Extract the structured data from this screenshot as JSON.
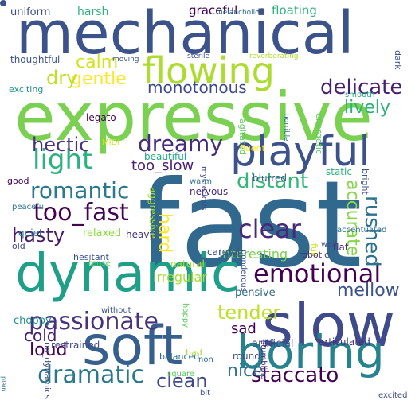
{
  "words": [
    {
      "text": "fast",
      "color": "#31688e",
      "rotated": false
    },
    {
      "text": "expressive",
      "color": "#7ad151",
      "rotated": false
    },
    {
      "text": "mechanical",
      "color": "#3b528b",
      "rotated": false
    },
    {
      "text": "slow",
      "color": "#3e4a89",
      "rotated": false
    },
    {
      "text": "soft",
      "color": "#355f8d",
      "rotated": false
    },
    {
      "text": "dynamic",
      "color": "#1f9f88",
      "rotated": false
    },
    {
      "text": "boring",
      "color": "#26828e",
      "rotated": false
    },
    {
      "text": "playful",
      "color": "#3b528b",
      "rotated": false
    },
    {
      "text": "flowing",
      "color": "#addc30",
      "rotated": false
    },
    {
      "text": "emotional",
      "color": "#440154",
      "rotated": false
    },
    {
      "text": "passionate",
      "color": "#46327e",
      "rotated": false
    },
    {
      "text": "dramatic",
      "color": "#2a788e",
      "rotated": false
    },
    {
      "text": "light",
      "color": "#2db27d",
      "rotated": false
    },
    {
      "text": "too_fast",
      "color": "#440154",
      "rotated": false
    },
    {
      "text": "romantic",
      "color": "#2a788e",
      "rotated": false
    },
    {
      "text": "dreamy",
      "color": "#472d7b",
      "rotated": false
    },
    {
      "text": "clear",
      "color": "#482878",
      "rotated": false
    },
    {
      "text": "delicate",
      "color": "#481f70",
      "rotated": false
    },
    {
      "text": "distant",
      "color": "#35b779",
      "rotated": false
    },
    {
      "text": "staccato",
      "color": "#440154",
      "rotated": false
    },
    {
      "text": "tender",
      "color": "#bddf26",
      "rotated": false
    },
    {
      "text": "rushed",
      "color": "#2c728e",
      "rotated": true
    },
    {
      "text": "clean",
      "color": "#3e4a89",
      "rotated": false
    },
    {
      "text": "hectic",
      "color": "#46327e",
      "rotated": false
    },
    {
      "text": "mellow",
      "color": "#3b528b",
      "rotated": false
    },
    {
      "text": "loud",
      "color": "#440154",
      "rotated": false
    },
    {
      "text": "hasty",
      "color": "#481a6c",
      "rotated": false
    },
    {
      "text": "lively",
      "color": "#2db27d",
      "rotated": false
    },
    {
      "text": "gentle",
      "color": "#fde725",
      "rotated": false
    },
    {
      "text": "calm",
      "color": "#d2e21b",
      "rotated": false
    },
    {
      "text": "dry",
      "color": "#c2df23",
      "rotated": false
    },
    {
      "text": "hard",
      "color": "#fde725",
      "rotated": true
    },
    {
      "text": "accurate",
      "color": "#86d549",
      "rotated": true
    },
    {
      "text": "cold",
      "color": "#481f70",
      "rotated": false
    },
    {
      "text": "nice",
      "color": "#2c728e",
      "rotated": false
    },
    {
      "text": "monotonous",
      "color": "#3e4a89",
      "rotated": false
    },
    {
      "text": "too_slow",
      "color": "#482173",
      "rotated": false
    },
    {
      "text": "sad",
      "color": "#440154",
      "rotated": false
    },
    {
      "text": "interesting",
      "color": "#7ad151",
      "rotated": false
    },
    {
      "text": "irregular",
      "color": "#a5db36",
      "rotated": false
    },
    {
      "text": "graceful",
      "color": "#440154",
      "rotated": false
    },
    {
      "text": "floating",
      "color": "#2db27d",
      "rotated": false
    },
    {
      "text": "harsh",
      "color": "#2db27d",
      "rotated": false
    },
    {
      "text": "uniform",
      "color": "#3e4a89",
      "rotated": false
    },
    {
      "text": "pensive",
      "color": "#31688e",
      "rotated": false
    },
    {
      "text": "beautiful",
      "color": "#22a884",
      "rotated": false
    },
    {
      "text": "artificial",
      "color": "#3b528b",
      "rotated": false
    },
    {
      "text": "articulated",
      "color": "#46327e",
      "rotated": false
    },
    {
      "text": "thoughtful",
      "color": "#3b528b",
      "rotated": false
    },
    {
      "text": "nervous",
      "color": "#472d7b",
      "rotated": false
    },
    {
      "text": "relaxed",
      "color": "#8fd744",
      "rotated": false
    },
    {
      "text": "heavy",
      "color": "#46327e",
      "rotated": false
    },
    {
      "text": "restrained",
      "color": "#3e4a89",
      "rotated": false
    },
    {
      "text": "choppy",
      "color": "#21918c",
      "rotated": false
    },
    {
      "text": "quiet",
      "color": "#2c728e",
      "rotated": false
    },
    {
      "text": "agitated",
      "color": "#5ec962",
      "rotated": true
    },
    {
      "text": "energetic",
      "color": "#5ec962",
      "rotated": true
    },
    {
      "text": "bright",
      "color": "#3b528b",
      "rotated": true
    },
    {
      "text": "dark",
      "color": "#3b528b",
      "rotated": true
    },
    {
      "text": "happy",
      "color": "#5ec962",
      "rotated": true
    },
    {
      "text": "stumbling",
      "color": "#482878",
      "rotated": true
    },
    {
      "text": "natural",
      "color": "#addc30",
      "rotated": false
    },
    {
      "text": "careful",
      "color": "#3b528b",
      "rotated": false
    },
    {
      "text": "full",
      "color": "#d2e21b",
      "rotated": true
    },
    {
      "text": "flat",
      "color": "#472d7b",
      "rotated": false
    },
    {
      "text": "mysterious",
      "color": "#3e4a89",
      "rotated": true
    },
    {
      "text": "robotic",
      "color": "#472d7b",
      "rotated": false
    },
    {
      "text": "ponderous",
      "color": "#3b528b",
      "rotated": true
    },
    {
      "text": "aggressive",
      "color": "#a5db36",
      "rotated": true
    },
    {
      "text": "blurred",
      "color": "#3b528b",
      "rotated": false
    },
    {
      "text": "static",
      "color": "#2db27d",
      "rotated": false
    },
    {
      "text": "legato",
      "color": "#440154",
      "rotated": false
    },
    {
      "text": "melancholic",
      "color": "#2c728e",
      "rotated": false
    },
    {
      "text": "moving",
      "color": "#3b528b",
      "rotated": false
    },
    {
      "text": "sterile",
      "color": "#3e4a89",
      "rotated": false
    },
    {
      "text": "reverberating",
      "color": "#addc30",
      "rotated": false
    },
    {
      "text": "exciting",
      "color": "#21918c",
      "rotated": false
    },
    {
      "text": "smooth",
      "color": "#22a884",
      "rotated": false
    },
    {
      "text": "fluent",
      "color": "#fde725",
      "rotated": false
    },
    {
      "text": "horrible",
      "color": "#2c728e",
      "rotated": true
    },
    {
      "text": "MIDI",
      "color": "#d2e21b",
      "rotated": false
    },
    {
      "text": "good",
      "color": "#440154",
      "rotated": false
    },
    {
      "text": "peaceful",
      "color": "#2c728e",
      "rotated": false
    },
    {
      "text": "warm",
      "color": "#2c728e",
      "rotated": false
    },
    {
      "text": "old",
      "color": "#3e4a89",
      "rotated": false
    },
    {
      "text": "hesitant",
      "color": "#3b528b",
      "rotated": false
    },
    {
      "text": "tense",
      "color": "#5ec962",
      "rotated": false
    },
    {
      "text": "accentuated",
      "color": "#2c728e",
      "rotated": false
    },
    {
      "text": "well",
      "color": "#3b528b",
      "rotated": false
    },
    {
      "text": "without",
      "color": "#3b528b",
      "rotated": false
    },
    {
      "text": "balanced",
      "color": "#2c728e",
      "rotated": false
    },
    {
      "text": "bad",
      "color": "#addc30",
      "rotated": false
    },
    {
      "text": "non",
      "color": "#2c728e",
      "rotated": false
    },
    {
      "text": "square",
      "color": "#5ec962",
      "rotated": false
    },
    {
      "text": "plain",
      "color": "#2c728e",
      "rotated": true
    },
    {
      "text": "no_dynamics",
      "color": "#3e4a89",
      "rotated": true
    },
    {
      "text": "bit",
      "color": "#3e4a89",
      "rotated": false
    },
    {
      "text": "excited",
      "color": "#3e4a89",
      "rotated": false
    },
    {
      "text": "round",
      "color": "#3b528b",
      "rotated": false
    },
    {
      "text": "ok",
      "color": "#3b528b",
      "rotated": false
    },
    {
      "text": "",
      "color": "#3b528b",
      "rotated": false,
      "dot": true
    }
  ]
}
